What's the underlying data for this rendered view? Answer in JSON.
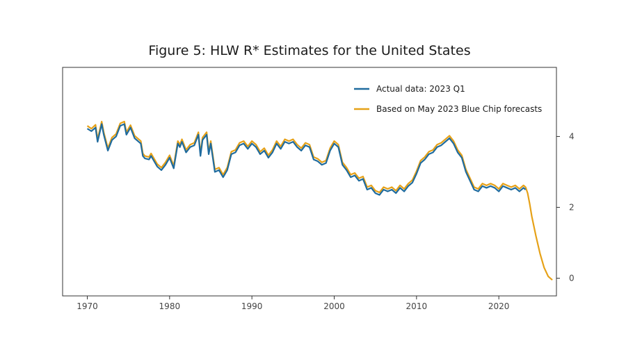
{
  "chart_data": {
    "type": "line",
    "title": "Figure 5: HLW R* Estimates for the United States",
    "xlabel": "",
    "ylabel": "",
    "xlim": [
      1967,
      2027
    ],
    "ylim": [
      -0.5,
      5.95
    ],
    "x_ticks": [
      1970,
      1980,
      1990,
      2000,
      2010,
      2020
    ],
    "y_ticks": [
      0,
      2,
      4
    ],
    "y_axis_side": "right",
    "grid": false,
    "legend_position": "top-right",
    "series": [
      {
        "name": "Actual data: 2023 Q1",
        "color": "#1f6b9e",
        "points": [
          [
            1970.0,
            4.22
          ],
          [
            1970.5,
            4.15
          ],
          [
            1971.0,
            4.25
          ],
          [
            1971.25,
            3.85
          ],
          [
            1971.75,
            4.35
          ],
          [
            1972.0,
            4.05
          ],
          [
            1972.5,
            3.6
          ],
          [
            1973.0,
            3.9
          ],
          [
            1973.5,
            4.0
          ],
          [
            1974.0,
            4.3
          ],
          [
            1974.5,
            4.35
          ],
          [
            1974.75,
            4.05
          ],
          [
            1975.25,
            4.25
          ],
          [
            1975.75,
            3.95
          ],
          [
            1976.5,
            3.8
          ],
          [
            1976.75,
            3.45
          ],
          [
            1977.0,
            3.38
          ],
          [
            1977.5,
            3.35
          ],
          [
            1977.75,
            3.45
          ],
          [
            1978.0,
            3.35
          ],
          [
            1978.5,
            3.15
          ],
          [
            1979.0,
            3.05
          ],
          [
            1979.5,
            3.2
          ],
          [
            1980.0,
            3.4
          ],
          [
            1980.5,
            3.1
          ],
          [
            1981.0,
            3.8
          ],
          [
            1981.25,
            3.7
          ],
          [
            1981.5,
            3.85
          ],
          [
            1982.0,
            3.55
          ],
          [
            1982.5,
            3.7
          ],
          [
            1983.0,
            3.75
          ],
          [
            1983.5,
            4.05
          ],
          [
            1983.75,
            3.45
          ],
          [
            1984.0,
            3.9
          ],
          [
            1984.5,
            4.05
          ],
          [
            1984.75,
            3.5
          ],
          [
            1985.0,
            3.8
          ],
          [
            1985.5,
            3.0
          ],
          [
            1986.0,
            3.05
          ],
          [
            1986.5,
            2.85
          ],
          [
            1987.0,
            3.05
          ],
          [
            1987.5,
            3.5
          ],
          [
            1988.0,
            3.55
          ],
          [
            1988.5,
            3.75
          ],
          [
            1989.0,
            3.8
          ],
          [
            1989.5,
            3.65
          ],
          [
            1990.0,
            3.8
          ],
          [
            1990.5,
            3.7
          ],
          [
            1991.0,
            3.5
          ],
          [
            1991.5,
            3.6
          ],
          [
            1992.0,
            3.4
          ],
          [
            1992.5,
            3.55
          ],
          [
            1993.0,
            3.8
          ],
          [
            1993.5,
            3.65
          ],
          [
            1994.0,
            3.85
          ],
          [
            1994.5,
            3.8
          ],
          [
            1995.0,
            3.85
          ],
          [
            1995.5,
            3.7
          ],
          [
            1996.0,
            3.6
          ],
          [
            1996.5,
            3.75
          ],
          [
            1997.0,
            3.7
          ],
          [
            1997.5,
            3.35
          ],
          [
            1998.0,
            3.3
          ],
          [
            1998.5,
            3.2
          ],
          [
            1999.0,
            3.25
          ],
          [
            1999.5,
            3.6
          ],
          [
            2000.0,
            3.8
          ],
          [
            2000.5,
            3.7
          ],
          [
            2001.0,
            3.2
          ],
          [
            2001.5,
            3.05
          ],
          [
            2002.0,
            2.85
          ],
          [
            2002.5,
            2.9
          ],
          [
            2003.0,
            2.75
          ],
          [
            2003.5,
            2.8
          ],
          [
            2004.0,
            2.5
          ],
          [
            2004.5,
            2.55
          ],
          [
            2005.0,
            2.4
          ],
          [
            2005.5,
            2.35
          ],
          [
            2006.0,
            2.5
          ],
          [
            2006.5,
            2.45
          ],
          [
            2007.0,
            2.5
          ],
          [
            2007.5,
            2.4
          ],
          [
            2008.0,
            2.55
          ],
          [
            2008.5,
            2.45
          ],
          [
            2009.0,
            2.6
          ],
          [
            2009.5,
            2.7
          ],
          [
            2010.0,
            2.95
          ],
          [
            2010.5,
            3.25
          ],
          [
            2011.0,
            3.35
          ],
          [
            2011.5,
            3.5
          ],
          [
            2012.0,
            3.55
          ],
          [
            2012.5,
            3.7
          ],
          [
            2013.0,
            3.75
          ],
          [
            2013.5,
            3.85
          ],
          [
            2014.0,
            3.95
          ],
          [
            2014.5,
            3.8
          ],
          [
            2015.0,
            3.55
          ],
          [
            2015.5,
            3.4
          ],
          [
            2016.0,
            3.0
          ],
          [
            2016.5,
            2.75
          ],
          [
            2017.0,
            2.5
          ],
          [
            2017.5,
            2.45
          ],
          [
            2018.0,
            2.6
          ],
          [
            2018.5,
            2.55
          ],
          [
            2019.0,
            2.6
          ],
          [
            2019.5,
            2.55
          ],
          [
            2020.0,
            2.45
          ],
          [
            2020.5,
            2.6
          ],
          [
            2021.0,
            2.55
          ],
          [
            2021.5,
            2.5
          ],
          [
            2022.0,
            2.55
          ],
          [
            2022.5,
            2.45
          ],
          [
            2023.0,
            2.55
          ],
          [
            2023.25,
            2.5
          ]
        ]
      },
      {
        "name": "Based on May 2023 Blue Chip forecasts",
        "color": "#e6a117",
        "points": [
          [
            1970.0,
            4.3
          ],
          [
            1970.5,
            4.22
          ],
          [
            1971.0,
            4.33
          ],
          [
            1971.25,
            3.92
          ],
          [
            1971.75,
            4.42
          ],
          [
            1972.0,
            4.12
          ],
          [
            1972.5,
            3.67
          ],
          [
            1973.0,
            3.97
          ],
          [
            1973.5,
            4.07
          ],
          [
            1974.0,
            4.37
          ],
          [
            1974.5,
            4.42
          ],
          [
            1974.75,
            4.12
          ],
          [
            1975.25,
            4.32
          ],
          [
            1975.75,
            4.02
          ],
          [
            1976.5,
            3.87
          ],
          [
            1976.75,
            3.52
          ],
          [
            1977.0,
            3.45
          ],
          [
            1977.5,
            3.42
          ],
          [
            1977.75,
            3.52
          ],
          [
            1978.0,
            3.42
          ],
          [
            1978.5,
            3.22
          ],
          [
            1979.0,
            3.12
          ],
          [
            1979.5,
            3.27
          ],
          [
            1980.0,
            3.47
          ],
          [
            1980.5,
            3.17
          ],
          [
            1981.0,
            3.87
          ],
          [
            1981.25,
            3.77
          ],
          [
            1981.5,
            3.92
          ],
          [
            1982.0,
            3.62
          ],
          [
            1982.5,
            3.77
          ],
          [
            1983.0,
            3.82
          ],
          [
            1983.5,
            4.12
          ],
          [
            1983.75,
            3.52
          ],
          [
            1984.0,
            3.97
          ],
          [
            1984.5,
            4.12
          ],
          [
            1984.75,
            3.57
          ],
          [
            1985.0,
            3.87
          ],
          [
            1985.5,
            3.07
          ],
          [
            1986.0,
            3.12
          ],
          [
            1986.5,
            2.92
          ],
          [
            1987.0,
            3.12
          ],
          [
            1987.5,
            3.57
          ],
          [
            1988.0,
            3.62
          ],
          [
            1988.5,
            3.82
          ],
          [
            1989.0,
            3.87
          ],
          [
            1989.5,
            3.72
          ],
          [
            1990.0,
            3.87
          ],
          [
            1990.5,
            3.77
          ],
          [
            1991.0,
            3.57
          ],
          [
            1991.5,
            3.67
          ],
          [
            1992.0,
            3.47
          ],
          [
            1992.5,
            3.62
          ],
          [
            1993.0,
            3.87
          ],
          [
            1993.5,
            3.72
          ],
          [
            1994.0,
            3.92
          ],
          [
            1994.5,
            3.87
          ],
          [
            1995.0,
            3.92
          ],
          [
            1995.5,
            3.77
          ],
          [
            1996.0,
            3.67
          ],
          [
            1996.5,
            3.82
          ],
          [
            1997.0,
            3.77
          ],
          [
            1997.5,
            3.42
          ],
          [
            1998.0,
            3.37
          ],
          [
            1998.5,
            3.27
          ],
          [
            1999.0,
            3.32
          ],
          [
            1999.5,
            3.67
          ],
          [
            2000.0,
            3.87
          ],
          [
            2000.5,
            3.77
          ],
          [
            2001.0,
            3.27
          ],
          [
            2001.5,
            3.12
          ],
          [
            2002.0,
            2.92
          ],
          [
            2002.5,
            2.97
          ],
          [
            2003.0,
            2.82
          ],
          [
            2003.5,
            2.87
          ],
          [
            2004.0,
            2.57
          ],
          [
            2004.5,
            2.62
          ],
          [
            2005.0,
            2.47
          ],
          [
            2005.5,
            2.42
          ],
          [
            2006.0,
            2.57
          ],
          [
            2006.5,
            2.52
          ],
          [
            2007.0,
            2.57
          ],
          [
            2007.5,
            2.47
          ],
          [
            2008.0,
            2.62
          ],
          [
            2008.5,
            2.52
          ],
          [
            2009.0,
            2.67
          ],
          [
            2009.5,
            2.77
          ],
          [
            2010.0,
            3.02
          ],
          [
            2010.5,
            3.32
          ],
          [
            2011.0,
            3.42
          ],
          [
            2011.5,
            3.57
          ],
          [
            2012.0,
            3.62
          ],
          [
            2012.5,
            3.77
          ],
          [
            2013.0,
            3.82
          ],
          [
            2013.5,
            3.92
          ],
          [
            2014.0,
            4.02
          ],
          [
            2014.5,
            3.87
          ],
          [
            2015.0,
            3.62
          ],
          [
            2015.5,
            3.47
          ],
          [
            2016.0,
            3.07
          ],
          [
            2016.5,
            2.82
          ],
          [
            2017.0,
            2.57
          ],
          [
            2017.5,
            2.52
          ],
          [
            2018.0,
            2.67
          ],
          [
            2018.5,
            2.62
          ],
          [
            2019.0,
            2.67
          ],
          [
            2019.5,
            2.62
          ],
          [
            2020.0,
            2.52
          ],
          [
            2020.5,
            2.67
          ],
          [
            2021.0,
            2.62
          ],
          [
            2021.5,
            2.57
          ],
          [
            2022.0,
            2.62
          ],
          [
            2022.5,
            2.52
          ],
          [
            2023.0,
            2.62
          ],
          [
            2023.25,
            2.57
          ],
          [
            2023.5,
            2.4
          ],
          [
            2023.75,
            2.1
          ],
          [
            2024.0,
            1.75
          ],
          [
            2024.5,
            1.2
          ],
          [
            2025.0,
            0.7
          ],
          [
            2025.5,
            0.3
          ],
          [
            2026.0,
            0.05
          ],
          [
            2026.5,
            -0.05
          ]
        ]
      }
    ]
  }
}
